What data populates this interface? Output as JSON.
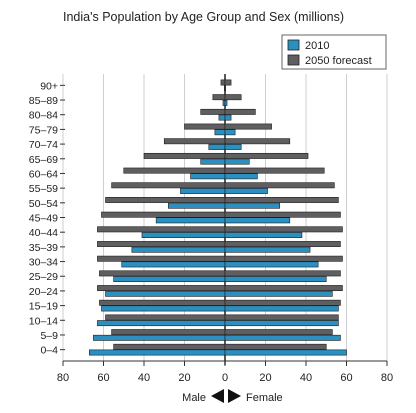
{
  "chart_data": {
    "type": "bar",
    "title": "India's Population by Age Group and Sex (millions)",
    "categories": [
      "0–4",
      "5–9",
      "10–14",
      "15–19",
      "20–24",
      "25–29",
      "30–34",
      "35–39",
      "40–44",
      "45–49",
      "50–54",
      "55–59",
      "60–64",
      "65–69",
      "70–74",
      "75–79",
      "80–84",
      "85–89",
      "90+"
    ],
    "xlim": [
      -80,
      80
    ],
    "ticks": [
      80,
      60,
      40,
      20,
      0,
      20,
      40,
      60,
      80
    ],
    "grid": true,
    "legend_position": "top-right",
    "series": [
      {
        "name": "2010",
        "color": "#2b8fc0",
        "male": [
          67,
          65,
          63,
          61,
          59,
          55,
          51,
          46,
          41,
          34,
          28,
          22,
          17,
          12,
          8,
          5,
          3,
          1,
          0.3
        ],
        "female": [
          60,
          57,
          56,
          56,
          53,
          50,
          46,
          42,
          38,
          32,
          27,
          21,
          16,
          12,
          8,
          5,
          3,
          1,
          0.3
        ]
      },
      {
        "name": "2050 forecast",
        "color": "#5f5f62",
        "male": [
          55,
          56,
          59,
          62,
          63,
          62,
          63,
          63,
          63,
          61,
          59,
          56,
          50,
          40,
          30,
          20,
          12,
          6,
          2
        ],
        "female": [
          50,
          53,
          56,
          57,
          58,
          57,
          58,
          57,
          58,
          57,
          56,
          54,
          49,
          41,
          32,
          23,
          15,
          8,
          3
        ]
      }
    ]
  },
  "axis": {
    "male_label": "Male",
    "female_label": "Female"
  }
}
